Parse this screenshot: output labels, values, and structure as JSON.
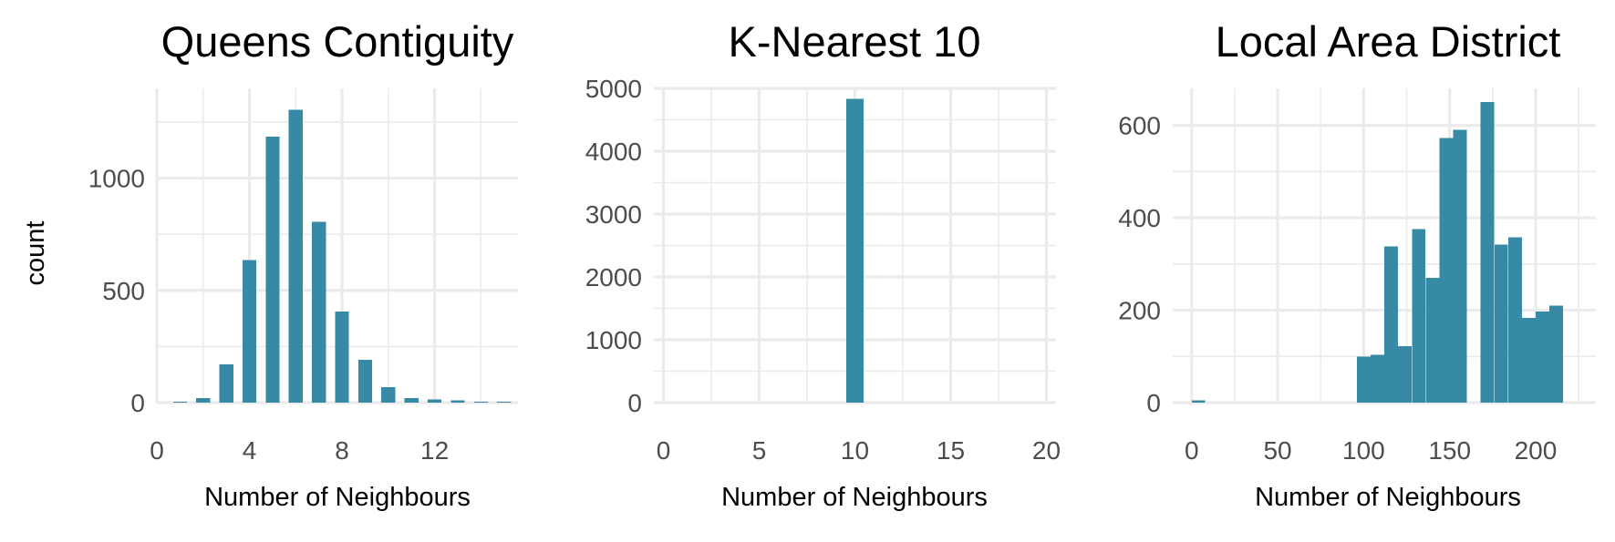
{
  "colors": {
    "bar": "#368AA5",
    "grid": "#EBEBEB",
    "tick_text": "#4D4D4D"
  },
  "y_label": "count",
  "chart_data": [
    {
      "type": "bar",
      "title": "Queens Contiguity",
      "xlabel": "Number of Neighbours",
      "ylabel": "count",
      "xlim": [
        0,
        15.6
      ],
      "ylim": [
        0,
        1400
      ],
      "x_ticks": [
        "0",
        "4",
        "8",
        "12"
      ],
      "y_ticks": [
        "0",
        "500",
        "1000"
      ],
      "bar_width": 0.6,
      "x": [
        1,
        2,
        3,
        4,
        5,
        6,
        7,
        8,
        9,
        10,
        11,
        12,
        13,
        14,
        15
      ],
      "values": [
        5,
        20,
        170,
        635,
        1185,
        1305,
        805,
        405,
        190,
        70,
        20,
        15,
        10,
        5,
        5
      ]
    },
    {
      "type": "bar",
      "title": "K-Nearest 10",
      "xlabel": "Number of Neighbours",
      "ylabel": "",
      "xlim": [
        -0.5,
        20.5
      ],
      "ylim": [
        0,
        5000
      ],
      "x_ticks": [
        "0",
        "5",
        "10",
        "15",
        "20"
      ],
      "y_ticks": [
        "0",
        "1000",
        "2000",
        "3000",
        "4000",
        "5000"
      ],
      "bar_width": 0.9,
      "x": [
        10
      ],
      "values": [
        4830
      ]
    },
    {
      "type": "bar",
      "title": "Local Area District",
      "xlabel": "Number of Neighbours",
      "ylabel": "",
      "xlim": [
        -11,
        235
      ],
      "ylim": [
        0,
        680
      ],
      "x_ticks": [
        "0",
        "50",
        "100",
        "150",
        "200"
      ],
      "y_ticks": [
        "0",
        "200",
        "400",
        "600"
      ],
      "bar_width": 7.9,
      "x": [
        4,
        12,
        20,
        28,
        36,
        44,
        52,
        60,
        68,
        76,
        84,
        92,
        100,
        108,
        116,
        124,
        132,
        140,
        148,
        156,
        164,
        172,
        180,
        188,
        196,
        204,
        212,
        220
      ],
      "values": [
        5,
        0,
        0,
        0,
        0,
        0,
        0,
        0,
        0,
        0,
        0,
        0,
        100,
        103,
        338,
        122,
        375,
        270,
        573,
        590,
        0,
        650,
        342,
        358,
        183,
        197,
        210,
        0
      ]
    }
  ]
}
